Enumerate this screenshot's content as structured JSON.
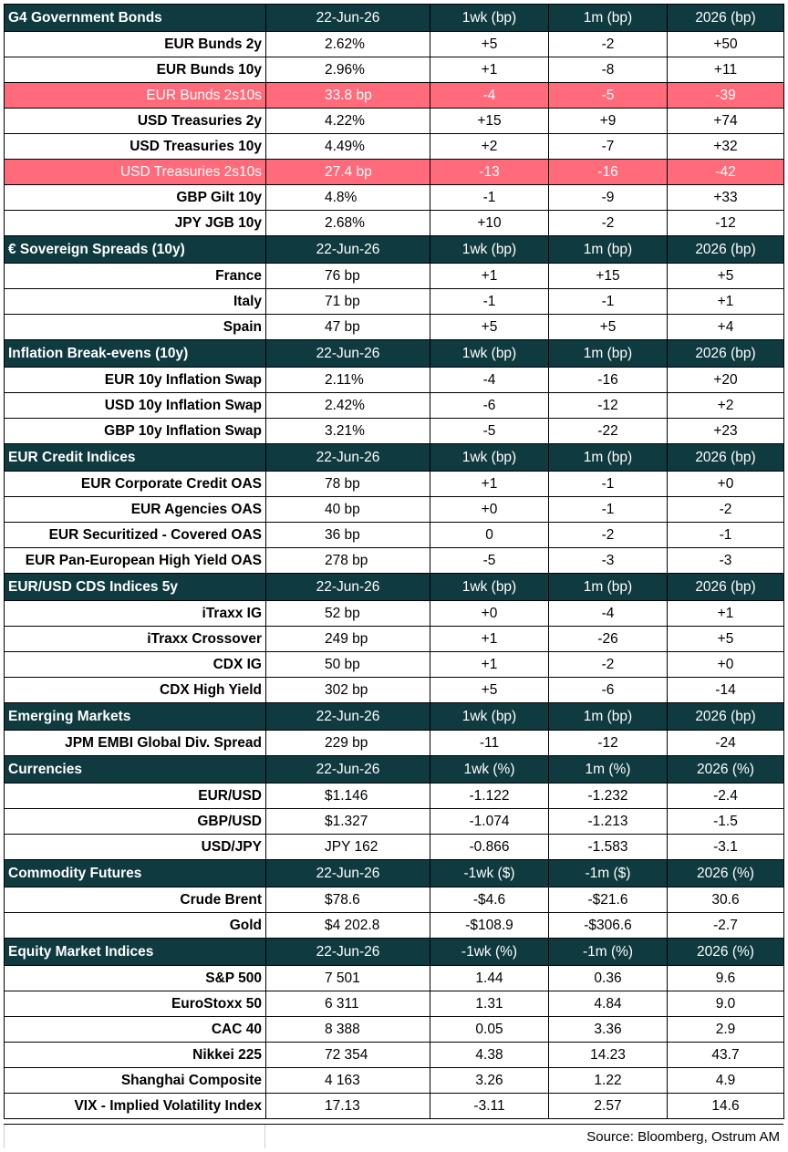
{
  "sections": [
    {
      "title": "G4 Government Bonds",
      "cols": [
        "22-Jun-26",
        "1wk (bp)",
        "1m (bp)",
        "2026 (bp)"
      ],
      "rows": [
        {
          "name": "EUR Bunds 2y",
          "vals": [
            "2.62%",
            "+5",
            "-2",
            "+50"
          ]
        },
        {
          "name": "EUR Bunds 10y",
          "vals": [
            "2.96%",
            "+1",
            "-8",
            "+11"
          ]
        },
        {
          "name": "EUR Bunds 2s10s",
          "vals": [
            "33.8 bp",
            "-4",
            "-5",
            "-39"
          ],
          "hl": true
        },
        {
          "name": "USD Treasuries 2y",
          "vals": [
            "4.22%",
            "+15",
            "+9",
            "+74"
          ]
        },
        {
          "name": "USD Treasuries 10y",
          "vals": [
            "4.49%",
            "+2",
            "-7",
            "+32"
          ]
        },
        {
          "name": "USD Treasuries 2s10s",
          "vals": [
            "27.4 bp",
            "-13",
            "-16",
            "-42"
          ],
          "hl": true
        },
        {
          "name": "GBP Gilt 10y",
          "vals": [
            "4.8%",
            "-1",
            "-9",
            "+33"
          ]
        },
        {
          "name": "JPY JGB 10y",
          "vals": [
            "2.68%",
            "+10",
            "-2",
            "-12"
          ]
        }
      ]
    },
    {
      "title": "€ Sovereign Spreads (10y)",
      "cols": [
        "22-Jun-26",
        "1wk (bp)",
        "1m (bp)",
        "2026 (bp)"
      ],
      "rows": [
        {
          "name": "France",
          "vals": [
            "76 bp",
            "+1",
            "+15",
            "+5"
          ]
        },
        {
          "name": "Italy",
          "vals": [
            "71 bp",
            "-1",
            "-1",
            "+1"
          ]
        },
        {
          "name": "Spain",
          "vals": [
            "47 bp",
            "+5",
            "+5",
            "+4"
          ]
        }
      ]
    },
    {
      "title": "Inflation Break-evens (10y)",
      "cols": [
        "22-Jun-26",
        "1wk (bp)",
        "1m (bp)",
        "2026 (bp)"
      ],
      "rows": [
        {
          "name": "EUR 10y Inflation Swap",
          "vals": [
            "2.11%",
            "-4",
            "-16",
            "+20"
          ]
        },
        {
          "name": "USD 10y Inflation Swap",
          "vals": [
            "2.42%",
            "-6",
            "-12",
            "+2"
          ]
        },
        {
          "name": "GBP 10y Inflation Swap",
          "vals": [
            "3.21%",
            "-5",
            "-22",
            "+23"
          ]
        }
      ]
    },
    {
      "title": "EUR Credit Indices",
      "cols": [
        "22-Jun-26",
        "1wk (bp)",
        "1m (bp)",
        "2026 (bp)"
      ],
      "rows": [
        {
          "name": "EUR Corporate Credit OAS",
          "vals": [
            "78 bp",
            "+1",
            "-1",
            "+0"
          ]
        },
        {
          "name": "EUR Agencies OAS",
          "vals": [
            "40 bp",
            "+0",
            "-1",
            "-2"
          ]
        },
        {
          "name": "EUR Securitized - Covered OAS",
          "vals": [
            "36 bp",
            "0",
            "-2",
            "-1"
          ]
        },
        {
          "name": "EUR Pan-European High Yield OAS",
          "vals": [
            "278 bp",
            "-5",
            "-3",
            "-3"
          ]
        }
      ]
    },
    {
      "title": "EUR/USD CDS Indices 5y",
      "cols": [
        "22-Jun-26",
        "1wk (bp)",
        "1m (bp)",
        "2026 (bp)"
      ],
      "rows": [
        {
          "name": "iTraxx IG",
          "vals": [
            "52 bp",
            "+0",
            "-4",
            "+1"
          ]
        },
        {
          "name": "iTraxx Crossover",
          "vals": [
            "249 bp",
            "+1",
            "-26",
            "+5"
          ]
        },
        {
          "name": "CDX IG",
          "vals": [
            "50 bp",
            "+1",
            "-2",
            "+0"
          ]
        },
        {
          "name": "CDX High Yield",
          "vals": [
            "302 bp",
            "+5",
            "-6",
            "-14"
          ]
        }
      ]
    },
    {
      "title": "Emerging Markets",
      "cols": [
        "22-Jun-26",
        "1wk (bp)",
        "1m (bp)",
        "2026 (bp)"
      ],
      "rows": [
        {
          "name": "JPM EMBI Global Div. Spread",
          "vals": [
            "229 bp",
            "-11",
            "-12",
            "-24"
          ]
        }
      ]
    },
    {
      "title": "Currencies",
      "cols": [
        "22-Jun-26",
        "1wk (%)",
        "1m (%)",
        "2026 (%)"
      ],
      "rows": [
        {
          "name": "EUR/USD",
          "vals": [
            "$1.146",
            "-1.122",
            "-1.232",
            "-2.4"
          ]
        },
        {
          "name": "GBP/USD",
          "vals": [
            "$1.327",
            "-1.074",
            "-1.213",
            "-1.5"
          ]
        },
        {
          "name": "USD/JPY",
          "vals": [
            "JPY 162",
            "-0.866",
            "-1.583",
            "-3.1"
          ]
        }
      ]
    },
    {
      "title": "Commodity Futures",
      "cols": [
        "22-Jun-26",
        "-1wk ($)",
        "-1m ($)",
        "2026 (%)"
      ],
      "rows": [
        {
          "name": "Crude Brent",
          "vals": [
            "$78.6",
            "-$4.6",
            "-$21.6",
            "30.6"
          ]
        },
        {
          "name": "Gold",
          "vals": [
            "$4 202.8",
            "-$108.9",
            "-$306.6",
            "-2.7"
          ]
        }
      ]
    },
    {
      "title": "Equity Market Indices",
      "cols": [
        "22-Jun-26",
        "-1wk (%)",
        "-1m (%)",
        "2026 (%)"
      ],
      "rows": [
        {
          "name": "S&P 500",
          "vals": [
            "7 501",
            "1.44",
            "0.36",
            "9.6"
          ]
        },
        {
          "name": "EuroStoxx 50",
          "vals": [
            "6 311",
            "1.31",
            "4.84",
            "9.0"
          ]
        },
        {
          "name": "CAC 40",
          "vals": [
            "8 388",
            "0.05",
            "3.36",
            "2.9"
          ]
        },
        {
          "name": "Nikkei 225",
          "vals": [
            "72 354",
            "4.38",
            "14.23",
            "43.7"
          ]
        },
        {
          "name": "Shanghai Composite",
          "vals": [
            "4 163",
            "3.26",
            "1.22",
            "4.9"
          ]
        },
        {
          "name": "VIX - Implied Volatility Index",
          "vals": [
            "17.13",
            "-3.11",
            "2.57",
            "14.6"
          ]
        }
      ]
    }
  ],
  "source": "Source: Bloomberg, Ostrum AM",
  "colors": {
    "header_bg": "#0f3a3f",
    "header_text": "#ffffff",
    "highlight_bg": "#ff6b7a"
  }
}
